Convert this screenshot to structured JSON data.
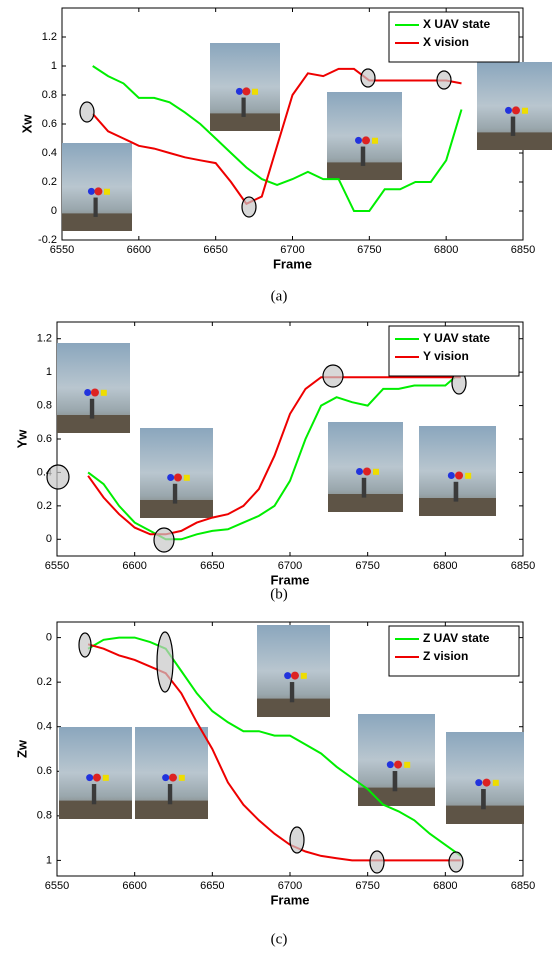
{
  "chart_data": [
    {
      "type": "line",
      "caption": "(a)",
      "x_label": "Frame",
      "y_label": "Xw",
      "x": [
        6570,
        6580,
        6590,
        6600,
        6610,
        6620,
        6630,
        6640,
        6650,
        6660,
        6670,
        6680,
        6690,
        6700,
        6710,
        6720,
        6730,
        6740,
        6750,
        6760,
        6770,
        6780,
        6790,
        6800,
        6810
      ],
      "series": [
        {
          "name": "X UAV state",
          "color": "#00ee00",
          "values": [
            1.0,
            0.93,
            0.88,
            0.78,
            0.78,
            0.75,
            0.68,
            0.6,
            0.5,
            0.4,
            0.3,
            0.22,
            0.18,
            0.22,
            0.27,
            0.22,
            0.22,
            0.0,
            0.0,
            0.15,
            0.15,
            0.2,
            0.2,
            0.35,
            0.7
          ]
        },
        {
          "name": "X vision",
          "color": "#ee0000",
          "values": [
            0.67,
            0.55,
            0.5,
            0.45,
            0.43,
            0.4,
            0.37,
            0.35,
            0.33,
            0.2,
            0.05,
            0.1,
            0.45,
            0.8,
            0.95,
            0.93,
            0.98,
            0.98,
            0.9,
            0.9,
            0.9,
            0.9,
            0.9,
            0.9,
            0.88
          ]
        }
      ],
      "xlim": [
        6550,
        6850
      ],
      "xticks": [
        6550,
        6600,
        6650,
        6700,
        6750,
        6800,
        6850
      ],
      "ylim": [
        -0.2,
        1.4
      ],
      "yticks": [
        -0.2,
        0,
        0.2,
        0.4,
        0.6,
        0.8,
        1,
        1.2
      ],
      "y_reversed": false,
      "legend": "upper right"
    },
    {
      "type": "line",
      "caption": "(b)",
      "x_label": "Frame",
      "y_label": "Yw",
      "x": [
        6570,
        6580,
        6590,
        6600,
        6610,
        6620,
        6630,
        6640,
        6650,
        6660,
        6670,
        6680,
        6690,
        6700,
        6710,
        6720,
        6730,
        6740,
        6750,
        6760,
        6770,
        6780,
        6790,
        6800,
        6810
      ],
      "series": [
        {
          "name": "Y UAV state",
          "color": "#00ee00",
          "values": [
            0.4,
            0.33,
            0.2,
            0.1,
            0.05,
            0.0,
            0.0,
            0.03,
            0.05,
            0.06,
            0.1,
            0.14,
            0.2,
            0.35,
            0.6,
            0.8,
            0.85,
            0.82,
            0.8,
            0.9,
            0.9,
            0.92,
            0.92,
            0.92,
            1.0
          ]
        },
        {
          "name": "Y vision",
          "color": "#ee0000",
          "values": [
            0.38,
            0.25,
            0.15,
            0.07,
            0.03,
            0.03,
            0.05,
            0.1,
            0.13,
            0.15,
            0.2,
            0.3,
            0.5,
            0.75,
            0.9,
            0.97,
            0.97,
            0.97,
            0.97,
            0.97,
            0.97,
            0.97,
            0.97,
            0.97,
            0.97
          ]
        }
      ],
      "xlim": [
        6550,
        6850
      ],
      "xticks": [
        6550,
        6600,
        6650,
        6700,
        6750,
        6800,
        6850
      ],
      "ylim": [
        -0.1,
        1.3
      ],
      "yticks": [
        0,
        0.2,
        0.4,
        0.6,
        0.8,
        1,
        1.2
      ],
      "y_reversed": false,
      "legend": "upper right"
    },
    {
      "type": "line",
      "caption": "(c)",
      "x_label": "Frame",
      "y_label": "Zw",
      "x": [
        6570,
        6580,
        6590,
        6600,
        6610,
        6620,
        6630,
        6640,
        6650,
        6660,
        6670,
        6680,
        6690,
        6700,
        6710,
        6720,
        6730,
        6740,
        6750,
        6760,
        6770,
        6780,
        6790,
        6800,
        6810
      ],
      "series": [
        {
          "name": "Z UAV state",
          "color": "#00ee00",
          "values": [
            0.05,
            0.01,
            0.0,
            0.0,
            0.02,
            0.05,
            0.15,
            0.25,
            0.33,
            0.38,
            0.42,
            0.42,
            0.44,
            0.44,
            0.48,
            0.52,
            0.58,
            0.63,
            0.68,
            0.75,
            0.78,
            0.82,
            0.88,
            0.93,
            0.98
          ]
        },
        {
          "name": "Z vision",
          "color": "#ee0000",
          "values": [
            0.03,
            0.05,
            0.08,
            0.1,
            0.13,
            0.16,
            0.25,
            0.38,
            0.5,
            0.65,
            0.75,
            0.82,
            0.88,
            0.93,
            0.96,
            0.98,
            0.99,
            1.0,
            1.0,
            1.0,
            1.0,
            1.0,
            1.0,
            1.0,
            1.0
          ]
        }
      ],
      "xlim": [
        6550,
        6850
      ],
      "xticks": [
        6550,
        6600,
        6650,
        6700,
        6750,
        6800,
        6850
      ],
      "ylim": [
        -0.07,
        1.07
      ],
      "yticks": [
        0,
        0.2,
        0.4,
        0.6,
        0.8,
        1
      ],
      "y_reversed": true,
      "legend": "upper right"
    }
  ]
}
